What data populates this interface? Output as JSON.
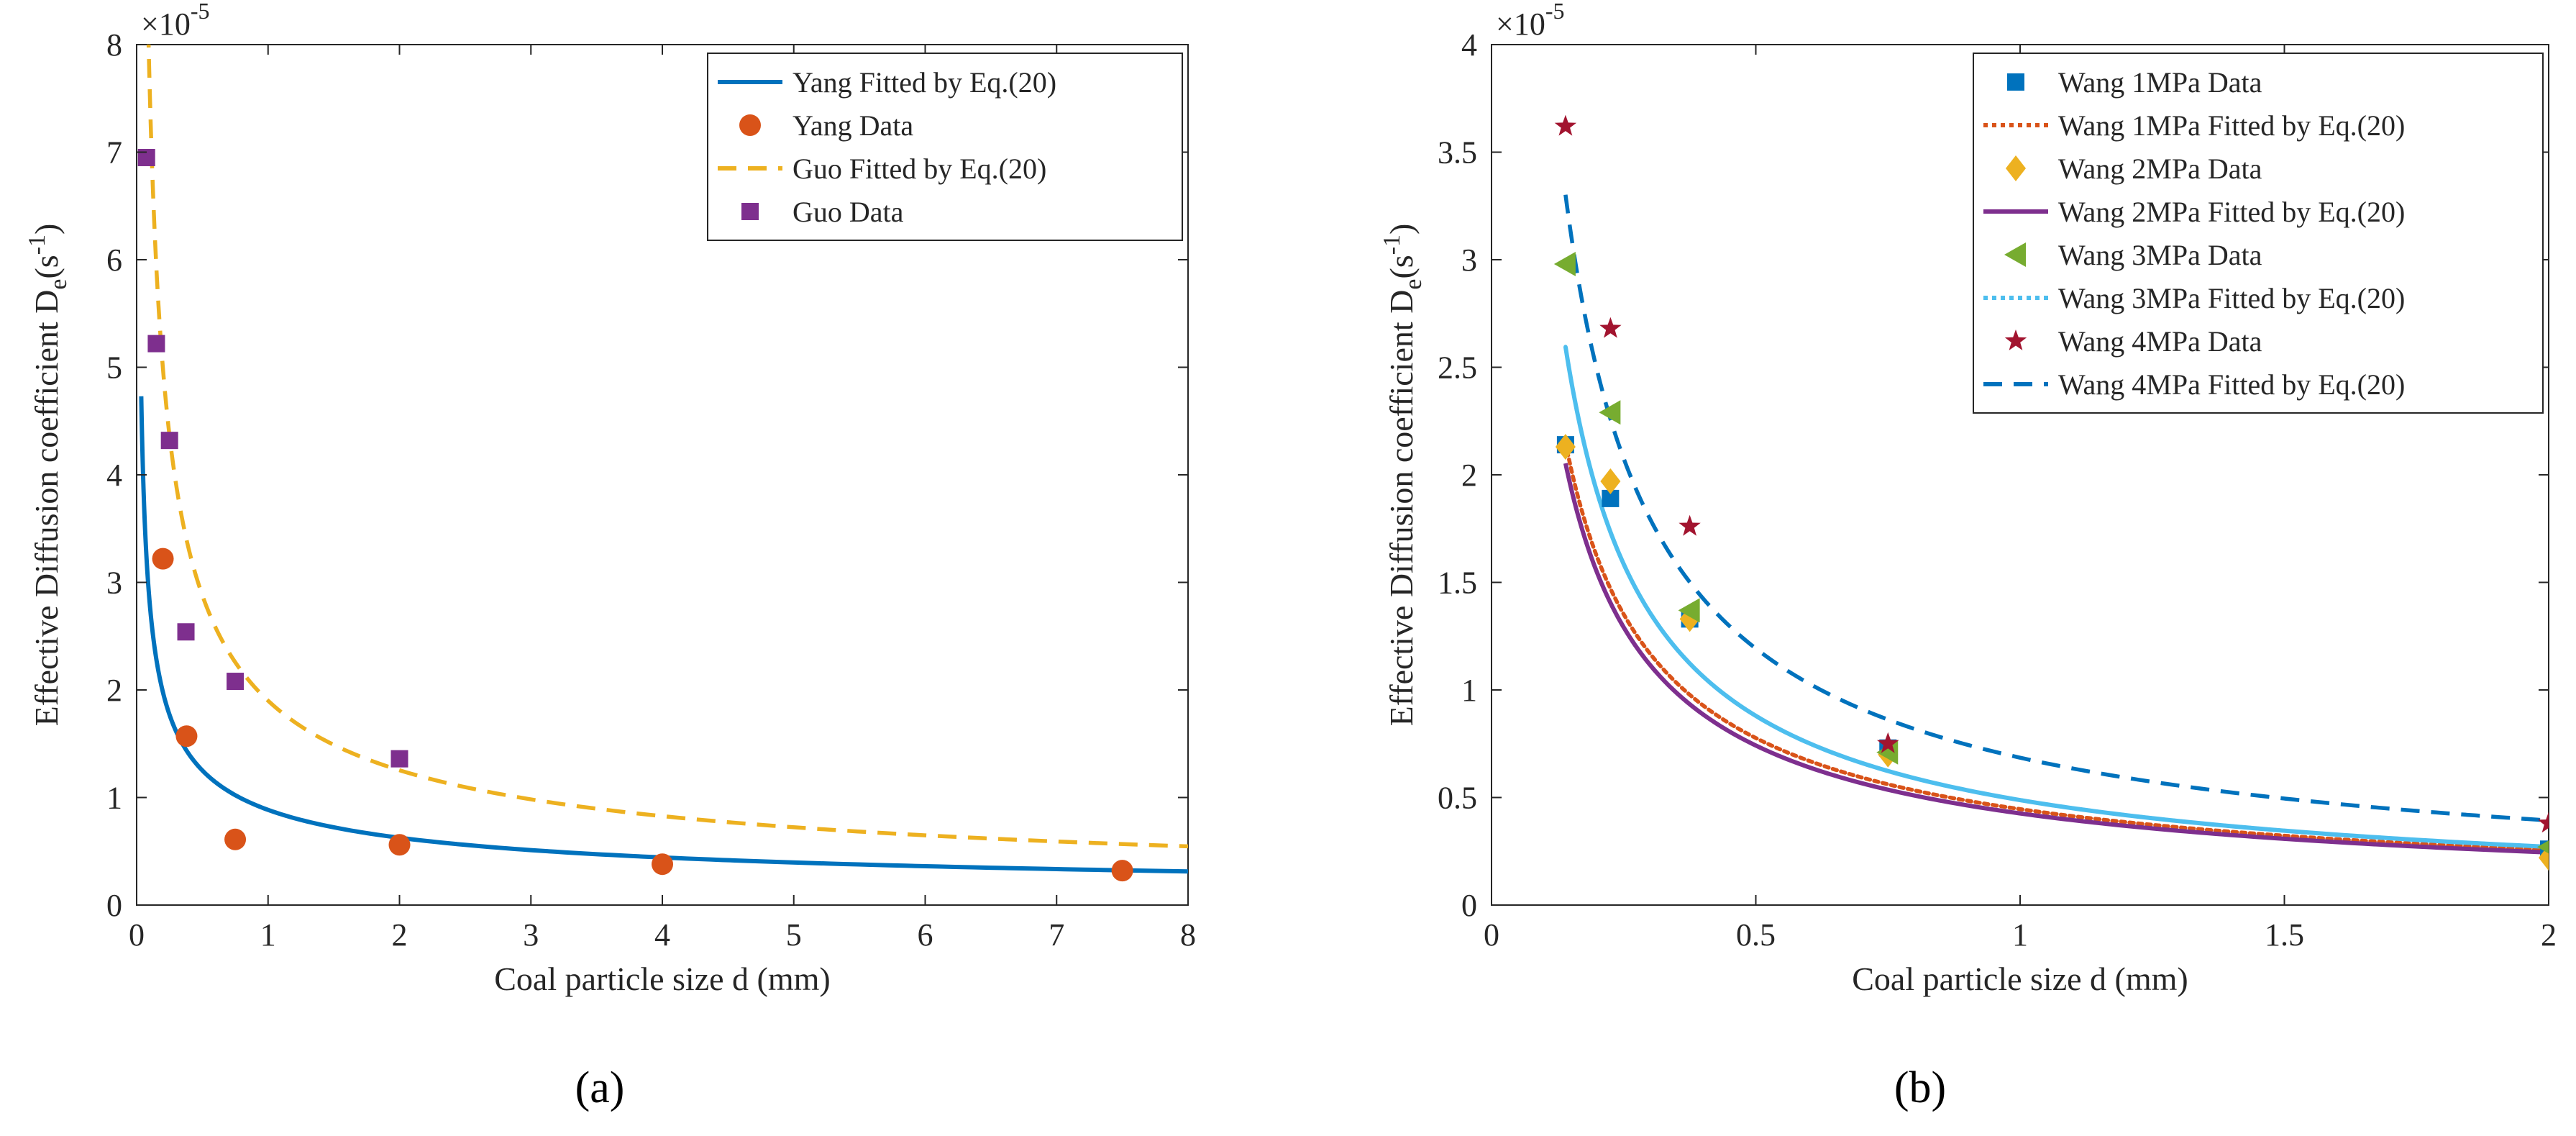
{
  "chart_data": [
    {
      "panel_label": "(a)",
      "type": "line",
      "xlabel": "Coal particle size d (mm)",
      "ylabel": "Effective Diffusion coefficient D_e(s^-1)",
      "ylabel_main": "Effective Diffusion coefficient D",
      "ylabel_sub": "e",
      "ylabel_paren_open": "(s",
      "ylabel_sup": "-1",
      "ylabel_paren_close": ")",
      "exponent_base": "×10",
      "exponent_power": "-5",
      "xlim": [
        0,
        8
      ],
      "ylim": [
        0,
        8
      ],
      "x_ticks": [
        0,
        1,
        2,
        3,
        4,
        5,
        6,
        7,
        8
      ],
      "y_ticks": [
        0,
        1,
        2,
        3,
        4,
        5,
        6,
        7,
        8
      ],
      "y_multiplier": 1e-05,
      "grid": false,
      "legend_position": "top-right",
      "series": [
        {
          "name": "Yang Fitted by Eq.(20)",
          "kind": "line",
          "style": "solid",
          "color": "#0072BD",
          "curve": {
            "a": 0.885,
            "p": 0.5,
            "x_from": 0.035,
            "x_to": 8
          }
        },
        {
          "name": "Yang Data",
          "kind": "marker",
          "marker": "circle",
          "color": "#D95319",
          "x": [
            0.2,
            0.38,
            0.75,
            2,
            4,
            7.5
          ],
          "y": [
            3.22,
            1.57,
            0.61,
            0.56,
            0.38,
            0.32
          ]
        },
        {
          "name": "Guo Fitted by Eq.(20)",
          "kind": "line",
          "style": "dashed",
          "color": "#EDB120",
          "curve": {
            "a": 1.9,
            "p": 0.6,
            "x_from": 0.075,
            "x_to": 8
          }
        },
        {
          "name": "Guo Data",
          "kind": "marker",
          "marker": "square",
          "color": "#7E2F8E",
          "x": [
            0.075,
            0.15,
            0.25,
            0.375,
            0.75,
            2
          ],
          "y": [
            6.95,
            5.22,
            4.32,
            2.54,
            2.08,
            1.36
          ]
        }
      ]
    },
    {
      "panel_label": "(b)",
      "type": "line",
      "xlabel": "Coal particle size d (mm)",
      "ylabel": "Effective Diffusion coefficient D_e(s^-1)",
      "ylabel_main": "Effective Diffusion coefficient D",
      "ylabel_sub": "e",
      "ylabel_paren_open": "(s",
      "ylabel_sup": "-1",
      "ylabel_paren_close": ")",
      "exponent_base": "×10",
      "exponent_power": "-5",
      "xlim": [
        0,
        2
      ],
      "ylim": [
        0,
        4
      ],
      "x_ticks": [
        0,
        0.5,
        1,
        1.5,
        2
      ],
      "y_ticks": [
        0,
        0.5,
        1,
        1.5,
        2,
        2.5,
        3,
        3.5,
        4
      ],
      "y_multiplier": 1e-05,
      "grid": false,
      "legend_position": "top-right",
      "series": [
        {
          "name": "Wang 1MPa Data",
          "kind": "marker",
          "marker": "square",
          "color": "#0072BD",
          "x": [
            0.14,
            0.225,
            0.375,
            0.75,
            2
          ],
          "y": [
            2.14,
            1.89,
            1.33,
            0.73,
            0.26
          ]
        },
        {
          "name": "Wang 1MPa Fitted by Eq.(20)",
          "kind": "line",
          "style": "dotted",
          "color": "#D95319",
          "curve": {
            "a": 0.446,
            "p": 0.8,
            "x_from": 0.14,
            "x_to": 2
          }
        },
        {
          "name": "Wang 2MPa Data",
          "kind": "marker",
          "marker": "diamond",
          "color": "#EDB120",
          "x": [
            0.14,
            0.225,
            0.375,
            0.75,
            2
          ],
          "y": [
            2.13,
            1.97,
            1.33,
            0.7,
            0.22
          ]
        },
        {
          "name": "Wang 2MPa Fitted by Eq.(20)",
          "kind": "line",
          "style": "solid",
          "color": "#7E2F8E",
          "curve": {
            "a": 0.426,
            "p": 0.8,
            "x_from": 0.14,
            "x_to": 2
          }
        },
        {
          "name": "Wang 3MPa Data",
          "kind": "marker",
          "marker": "triangle-left",
          "color": "#77AC30",
          "x": [
            0.14,
            0.225,
            0.375,
            0.75,
            2
          ],
          "y": [
            2.98,
            2.29,
            1.37,
            0.71,
            0.27
          ]
        },
        {
          "name": "Wang 3MPa Fitted by Eq.(20)",
          "kind": "line",
          "style": "dotted",
          "color": "#4DBEEE",
          "curve": {
            "a": 0.488,
            "p": 0.85,
            "x_from": 0.14,
            "x_to": 2
          }
        },
        {
          "name": "Wang 4MPa Data",
          "kind": "marker",
          "marker": "star",
          "color": "#A2142F",
          "x": [
            0.14,
            0.225,
            0.375,
            0.75,
            2
          ],
          "y": [
            3.62,
            2.68,
            1.76,
            0.75,
            0.38
          ]
        },
        {
          "name": "Wang 4MPa Fitted by Eq.(20)",
          "kind": "line",
          "style": "dashed",
          "color": "#0072BD",
          "curve": {
            "a": 0.685,
            "p": 0.8,
            "x_from": 0.14,
            "x_to": 2
          }
        }
      ],
      "overlay_curve": {
        "color": "#4DBEEE",
        "style": "solid",
        "curve": {
          "a": 0.488,
          "p": 0.85,
          "x_from": 0.14,
          "x_to": 2
        }
      }
    }
  ]
}
